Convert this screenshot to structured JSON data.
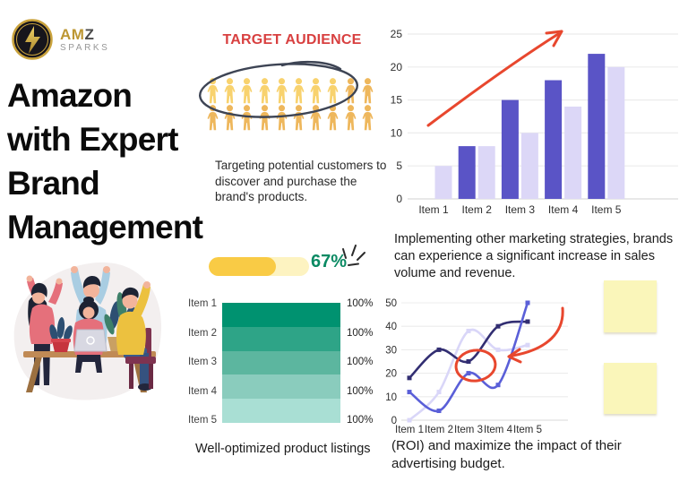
{
  "logo": {
    "icon": "lightning-bolt-icon",
    "name_gold": "AM",
    "name_dark": "Z",
    "subtitle": "SPARKS",
    "gold_color": "#c9a23c",
    "circle_color": "#17151c"
  },
  "heading": {
    "lines": [
      "Amazon",
      "with Expert",
      "Brand",
      "Management"
    ],
    "color": "#0b0b0b"
  },
  "audience": {
    "title": "TARGET AUDIENCE",
    "title_color": "#d84040",
    "description": "Targeting potential customers to discover and purchase the brand's products.",
    "rows": 2,
    "per_row": 10,
    "highlighted_count": 8,
    "icon": "person-icon",
    "icon_color_highlight": "#f8d26e",
    "icon_color_normal": "#eeb75c",
    "circle_stroke_color": "#3d4454"
  },
  "progress": {
    "label": "67%",
    "percent": 67,
    "fill_color": "#f9cb45",
    "track_color": "#fdf3c1",
    "label_color": "#0b8a63"
  },
  "captions": {
    "listings": "Well-optimized product listings",
    "marketing": "Implementing other marketing strategies, brands can experience a significant increase in sales volume and revenue.",
    "roi": "(ROI) and maximize the impact of their advertising budget."
  },
  "annotations": {
    "arrow_color": "#e8472e"
  },
  "sticky_notes": {
    "count": 2,
    "color": "#faf6ba"
  },
  "chart_data": [
    {
      "id": "sales-bar-chart",
      "type": "bar",
      "categories": [
        "Item 1",
        "Item 2",
        "Item 3",
        "Item 4",
        "Item 5"
      ],
      "series": [
        {
          "name": "bars-dark",
          "color": "#5a54c6",
          "values": [
            0,
            8,
            15,
            18,
            22
          ]
        },
        {
          "name": "bars-light",
          "color": "#dcd7f7",
          "values": [
            5,
            8,
            10,
            14,
            20
          ]
        }
      ],
      "ylim": [
        0,
        25
      ],
      "yticks": [
        0,
        5,
        10,
        15,
        20,
        25
      ],
      "grid": true,
      "legend": "none",
      "annotation": "hand-drawn red arrow rising left to right"
    },
    {
      "id": "listings-bar-chart",
      "type": "bar",
      "orientation": "horizontal",
      "categories": [
        "Item 1",
        "Item 2",
        "Item 3",
        "Item 4",
        "Item 5"
      ],
      "values": [
        100,
        100,
        100,
        100,
        100
      ],
      "value_labels": [
        "100%",
        "100%",
        "100%",
        "100%",
        "100%"
      ],
      "bar_colors": [
        "#009270",
        "#2ea487",
        "#5cb69f",
        "#8accbd",
        "#a9dfd4"
      ],
      "xlim": [
        0,
        100
      ],
      "grid": false,
      "legend": "none"
    },
    {
      "id": "roi-line-chart",
      "type": "line",
      "categories": [
        "Item 1",
        "Item 2",
        "Item 3",
        "Item 4",
        "Item 5"
      ],
      "series": [
        {
          "name": "line-lavender",
          "color": "#d9d6f8",
          "values": [
            0,
            12,
            38,
            30,
            32
          ]
        },
        {
          "name": "line-navy",
          "color": "#322e72",
          "values": [
            18,
            30,
            25,
            40,
            42
          ]
        },
        {
          "name": "line-blue",
          "color": "#5a5fd8",
          "values": [
            12,
            4,
            20,
            15,
            50
          ]
        }
      ],
      "ylim": [
        0,
        50
      ],
      "yticks": [
        0,
        10,
        20,
        30,
        40,
        50
      ],
      "grid": true,
      "legend": "none",
      "annotation": "hand-drawn red circle around Item 3 values with curved red arrow"
    }
  ]
}
